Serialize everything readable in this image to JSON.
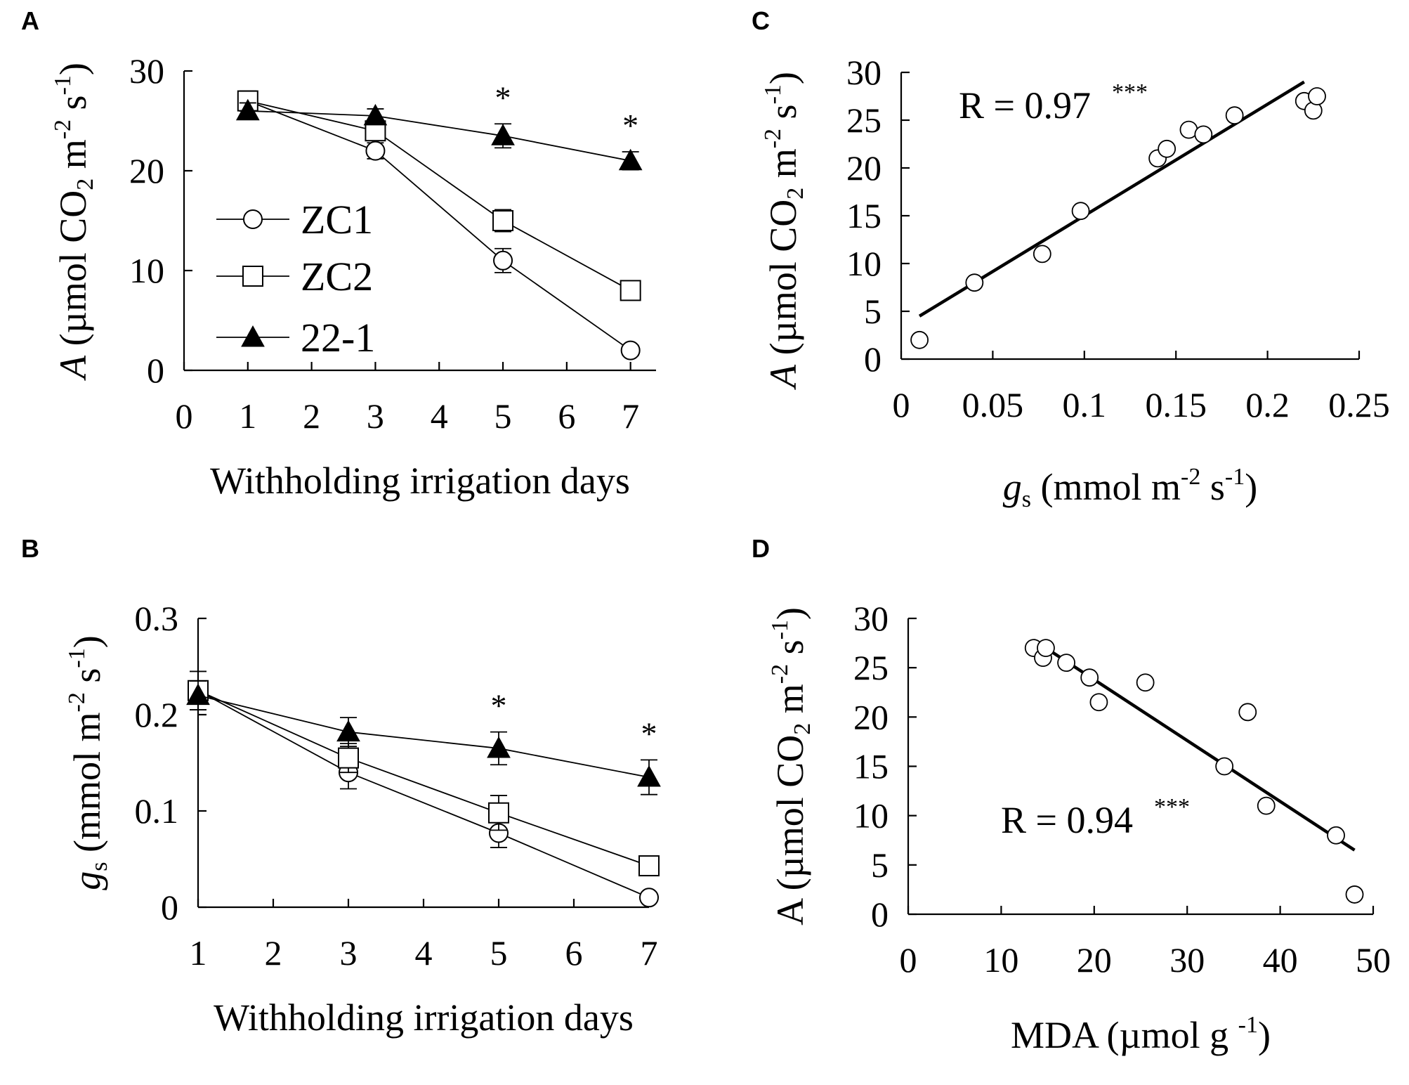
{
  "chart_data": [
    {
      "id": "A",
      "panel_label": "A",
      "type": "line",
      "xlabel": "Withholding irrigation days",
      "ylabel_parts": [
        "A",
        " (µmol CO",
        "2",
        " m",
        "-2",
        " s",
        "-1",
        ")"
      ],
      "xticks": [
        0,
        1,
        2,
        3,
        4,
        5,
        6,
        7
      ],
      "xtick_labels": [
        "0",
        "1",
        "2",
        "3",
        "4",
        "5",
        "6",
        "7"
      ],
      "yticks": [
        0,
        10,
        20,
        30
      ],
      "ytick_labels": [
        "0",
        "10",
        "20",
        "30"
      ],
      "xlim": [
        0,
        7.4
      ],
      "ylim": [
        0,
        30
      ],
      "x": [
        1,
        3,
        5,
        7
      ],
      "series": [
        {
          "name": "ZC1",
          "marker": "circle-open",
          "values": [
            27,
            22,
            11,
            2
          ],
          "errors": [
            1.0,
            0.8,
            1.2,
            0.5
          ]
        },
        {
          "name": "ZC2",
          "marker": "square-open",
          "values": [
            27,
            24,
            15,
            8
          ],
          "errors": [
            1.0,
            0.8,
            1.1,
            0.6
          ]
        },
        {
          "name": "22-1",
          "marker": "triangle-filled",
          "values": [
            26,
            25.5,
            23.5,
            21
          ],
          "errors": [
            0.8,
            0.7,
            1.2,
            0.9
          ]
        }
      ],
      "significance": [
        {
          "x": 5,
          "label": "*"
        },
        {
          "x": 7,
          "label": "*"
        }
      ],
      "legend_position": "left-middle"
    },
    {
      "id": "B",
      "panel_label": "B",
      "type": "line",
      "xlabel": "Withholding irrigation days",
      "ylabel_parts": [
        "g",
        "s",
        " (mmol m",
        "-2",
        " s",
        "-1",
        ")"
      ],
      "xticks": [
        1,
        2,
        3,
        4,
        5,
        6,
        7
      ],
      "xtick_labels": [
        "1",
        "2",
        "3",
        "4",
        "5",
        "6",
        "7"
      ],
      "yticks": [
        0,
        0.1,
        0.2,
        0.3
      ],
      "ytick_labels": [
        "0",
        "0.1",
        "0.2",
        "0.3"
      ],
      "xlim": [
        1,
        7
      ],
      "ylim": [
        0,
        0.3
      ],
      "x": [
        1,
        3,
        5,
        7
      ],
      "series": [
        {
          "name": "ZC1",
          "marker": "circle-open",
          "values": [
            0.225,
            0.14,
            0.077,
            0.01
          ],
          "errors": [
            0.02,
            0.017,
            0.015,
            0.004
          ]
        },
        {
          "name": "ZC2",
          "marker": "square-open",
          "values": [
            0.225,
            0.155,
            0.098,
            0.043
          ],
          "errors": [
            0.02,
            0.015,
            0.018,
            0.006
          ]
        },
        {
          "name": "22-1",
          "marker": "triangle-filled",
          "values": [
            0.22,
            0.182,
            0.165,
            0.135
          ],
          "errors": [
            0.015,
            0.015,
            0.017,
            0.018
          ]
        }
      ],
      "significance": [
        {
          "x": 5,
          "label": "*"
        },
        {
          "x": 7,
          "label": "*"
        }
      ]
    },
    {
      "id": "C",
      "panel_label": "C",
      "type": "scatter",
      "xlabel_parts": [
        "g",
        "s",
        " (mmol m",
        "-2",
        " s",
        "-1",
        ")"
      ],
      "ylabel_parts": [
        "A",
        " (µmol CO",
        "2",
        " m",
        "-2",
        " s",
        "-1",
        ")"
      ],
      "xticks": [
        0,
        0.05,
        0.1,
        0.15,
        0.2,
        0.25
      ],
      "xtick_labels": [
        "0",
        "0.05",
        "0.1",
        "0.15",
        "0.2",
        "0.25"
      ],
      "yticks": [
        0,
        5,
        10,
        15,
        20,
        25,
        30
      ],
      "ytick_labels": [
        "0",
        "5",
        "10",
        "15",
        "20",
        "25",
        "30"
      ],
      "xlim": [
        0,
        0.25
      ],
      "ylim": [
        0,
        30
      ],
      "points": [
        [
          0.01,
          2
        ],
        [
          0.04,
          8
        ],
        [
          0.077,
          11
        ],
        [
          0.098,
          15.5
        ],
        [
          0.14,
          21
        ],
        [
          0.145,
          22
        ],
        [
          0.157,
          24
        ],
        [
          0.165,
          23.5
        ],
        [
          0.182,
          25.5
        ],
        [
          0.22,
          27
        ],
        [
          0.225,
          26
        ],
        [
          0.227,
          27.5
        ]
      ],
      "fit_line": {
        "x": [
          0.01,
          0.22
        ],
        "y": [
          4.5,
          29
        ]
      },
      "annotation": {
        "text": "R = 0.97",
        "sup": "***"
      }
    },
    {
      "id": "D",
      "panel_label": "D",
      "type": "scatter",
      "xlabel_parts": [
        "MDA (µmol g ",
        "-1",
        ")"
      ],
      "ylabel_parts": [
        "A (µmol CO",
        "2",
        " m",
        "-2",
        " s",
        "-1",
        ")"
      ],
      "xticks": [
        0,
        10,
        20,
        30,
        40,
        50
      ],
      "xtick_labels": [
        "0",
        "10",
        "20",
        "30",
        "40",
        "50"
      ],
      "yticks": [
        0,
        5,
        10,
        15,
        20,
        25,
        30
      ],
      "ytick_labels": [
        "0",
        "5",
        "10",
        "15",
        "20",
        "25",
        "30"
      ],
      "xlim": [
        0,
        50
      ],
      "ylim": [
        0,
        30
      ],
      "points": [
        [
          13.5,
          27
        ],
        [
          14.5,
          26
        ],
        [
          14.8,
          27
        ],
        [
          17,
          25.5
        ],
        [
          19.5,
          24
        ],
        [
          20.5,
          21.5
        ],
        [
          25.5,
          23.5
        ],
        [
          34,
          15
        ],
        [
          36.5,
          20.5
        ],
        [
          38.5,
          11
        ],
        [
          46,
          8
        ],
        [
          48,
          2
        ]
      ],
      "fit_line": {
        "x": [
          13.5,
          48
        ],
        "y": [
          27.8,
          6.5
        ]
      },
      "annotation": {
        "text": "R = 0.94",
        "sup": "***"
      }
    }
  ]
}
